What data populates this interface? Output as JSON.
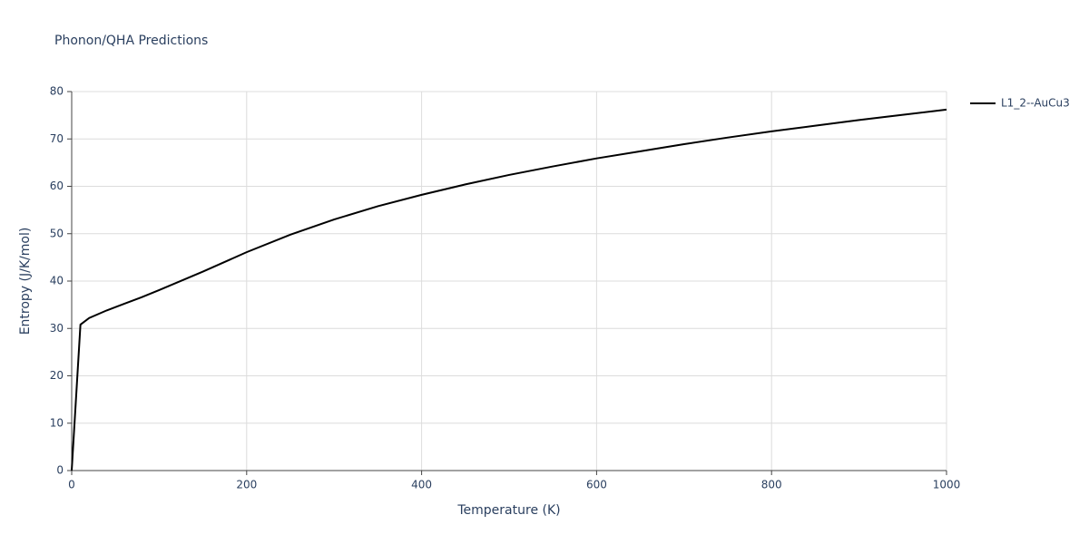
{
  "chart_data": {
    "type": "line",
    "title": "Phonon/QHA Predictions",
    "xlabel": "Temperature (K)",
    "ylabel": "Entropy (J/K/mol)",
    "x": [
      0,
      10,
      20,
      40,
      60,
      80,
      100,
      150,
      200,
      250,
      300,
      350,
      400,
      450,
      500,
      550,
      600,
      650,
      700,
      750,
      800,
      850,
      900,
      950,
      1000
    ],
    "series": [
      {
        "name": "L1_2--AuCu3",
        "color": "#000000",
        "values": [
          0,
          30.8,
          32.2,
          33.8,
          35.2,
          36.6,
          38.1,
          42.0,
          46.1,
          49.8,
          53.0,
          55.8,
          58.2,
          60.4,
          62.4,
          64.2,
          65.9,
          67.4,
          68.9,
          70.3,
          71.6,
          72.8,
          74.0,
          75.1,
          76.2
        ]
      }
    ],
    "xlim": [
      0,
      1000
    ],
    "xticks": [
      0,
      200,
      400,
      600,
      800,
      1000
    ],
    "ylim": [
      0,
      80
    ],
    "yticks": [
      0,
      10,
      20,
      30,
      40,
      50,
      60,
      70,
      80
    ],
    "grid": true,
    "legend": "right"
  }
}
